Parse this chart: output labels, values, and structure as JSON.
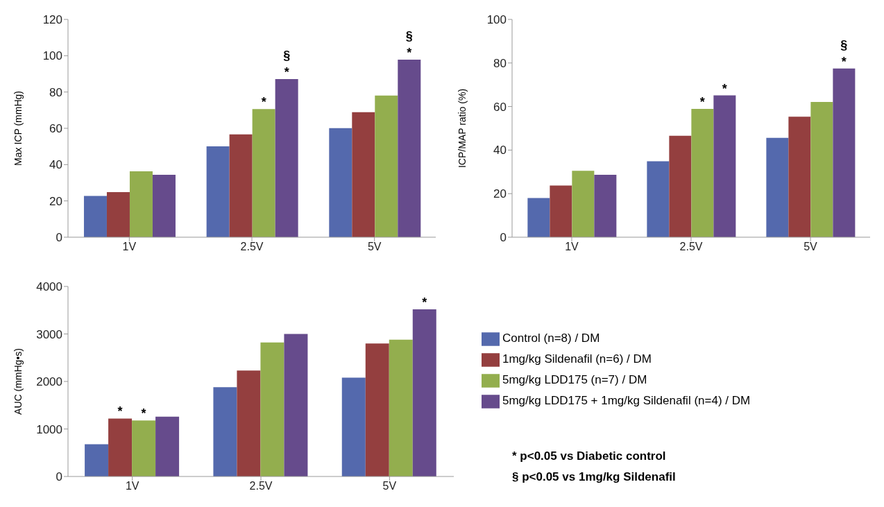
{
  "chart_data": [
    {
      "type": "bar",
      "ylabel": "Max ICP (mmHg)",
      "categories": [
        "1V",
        "2.5V",
        "5V"
      ],
      "ylim": [
        0,
        120
      ],
      "yticks": [
        0,
        20,
        40,
        60,
        80,
        100,
        120
      ],
      "series": [
        {
          "color": "#5469ad",
          "values": [
            22.7,
            50.1,
            60.1
          ]
        },
        {
          "color": "#943f3f",
          "values": [
            24.8,
            56.7,
            68.9
          ]
        },
        {
          "color": "#93ae4e",
          "values": [
            36.3,
            70.6,
            78.1
          ],
          "value_labels": [
            null,
            "*",
            null
          ]
        },
        {
          "color": "#664b8c",
          "values": [
            34.4,
            87.1,
            97.8
          ],
          "value_labels": [
            null,
            "§\n*",
            "§\n*"
          ]
        }
      ]
    },
    {
      "type": "bar",
      "ylabel": "ICP/MAP ratio (%)",
      "categories": [
        "1V",
        "2.5V",
        "5V"
      ],
      "ylim": [
        0,
        100
      ],
      "yticks": [
        0,
        20,
        40,
        60,
        80,
        100
      ],
      "series": [
        {
          "color": "#5469ad",
          "values": [
            18,
            34.9,
            45.6
          ]
        },
        {
          "color": "#943f3f",
          "values": [
            23.7,
            46.6,
            55.3
          ]
        },
        {
          "color": "#93ae4e",
          "values": [
            30.5,
            58.9,
            62.1
          ],
          "value_labels": [
            null,
            "*",
            null
          ]
        },
        {
          "color": "#664b8c",
          "values": [
            28.7,
            65.1,
            77.5
          ],
          "value_labels": [
            null,
            "*",
            "§\n*"
          ]
        }
      ]
    },
    {
      "type": "bar",
      "ylabel": "AUC (mmHg•s)",
      "categories": [
        "1V",
        "2.5V",
        "5V"
      ],
      "ylim": [
        0,
        4000
      ],
      "yticks": [
        0,
        1000,
        2000,
        3000,
        4000
      ],
      "legend": "right",
      "annotations": [
        "* p<0.05 vs Diabetic control",
        "§ p<0.05 vs 1mg/kg Sildenafil"
      ],
      "series": [
        {
          "name": "Control (n=8) / DM",
          "color": "#5469ad",
          "values": [
            680,
            1880,
            2080
          ]
        },
        {
          "name": "1mg/kg Sildenafil (n=6) / DM",
          "color": "#943f3f",
          "values": [
            1220,
            2230,
            2800
          ],
          "value_labels": [
            "*",
            null,
            null
          ]
        },
        {
          "name": "5mg/kg LDD175 (n=7) / DM",
          "color": "#93ae4e",
          "values": [
            1180,
            2820,
            2880
          ],
          "value_labels": [
            "*",
            null,
            null
          ]
        },
        {
          "name": "5mg/kg LDD175 + 1mg/kg Sildenafil (n=4) / DM",
          "color": "#664b8c",
          "values": [
            1260,
            3000,
            3520
          ],
          "value_labels": [
            null,
            null,
            "*"
          ]
        }
      ]
    }
  ]
}
